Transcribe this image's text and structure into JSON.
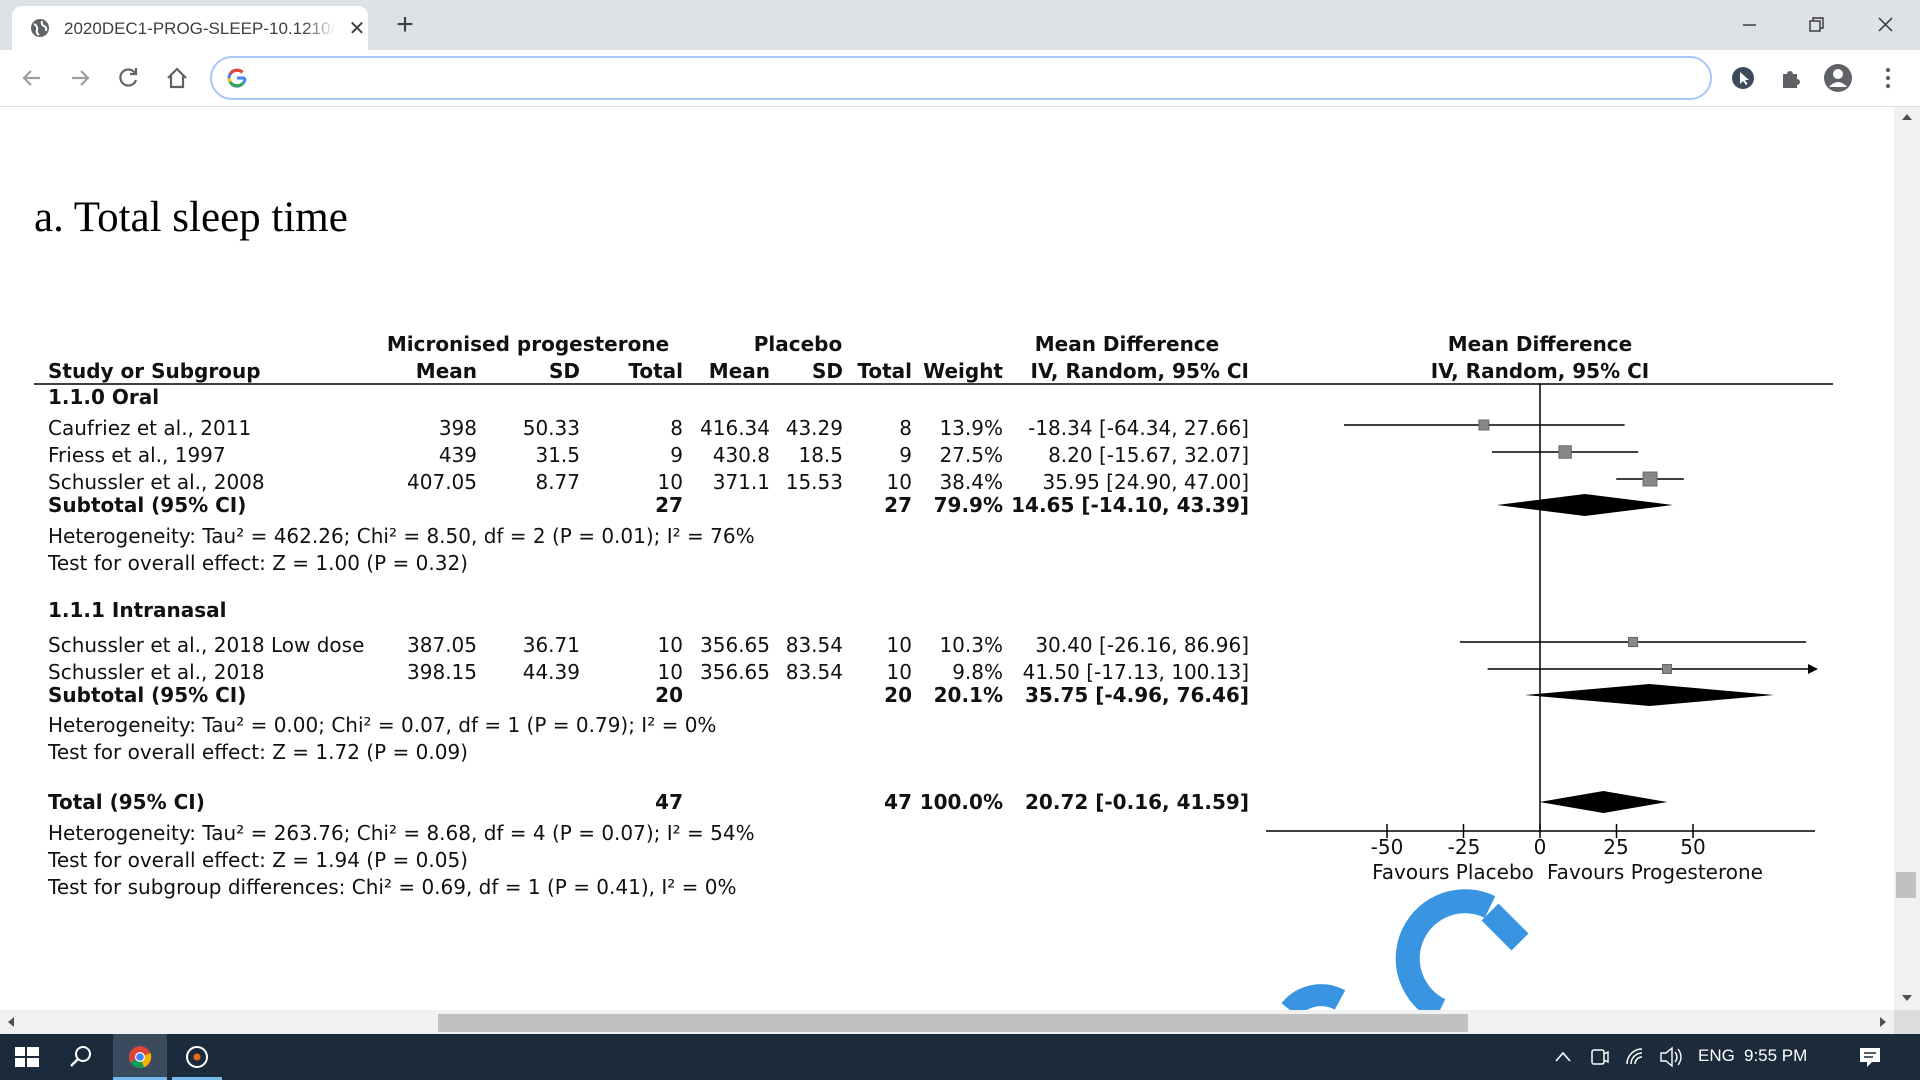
{
  "browser": {
    "tab_title": "2020DEC1-PROG-SLEEP-10.1210/",
    "new_tab": "+",
    "close_tab": "✕",
    "address_value": ""
  },
  "page": {
    "heading": "a. Total sleep time"
  },
  "forest_plot": {
    "header": {
      "group1": "Micronised progesterone",
      "group2": "Placebo",
      "md_group": "Mean Difference",
      "plot_group": "Mean Difference",
      "study": "Study or Subgroup",
      "mean1": "Mean",
      "sd1": "SD",
      "total1": "Total",
      "mean2": "Mean",
      "sd2": "SD",
      "total2": "Total",
      "weight": "Weight",
      "md_method": "IV, Random, 95% CI",
      "plot_method": "IV, Random, 95% CI"
    },
    "subgroups": [
      {
        "label": "1.1.0 Oral",
        "studies": [
          {
            "name": "Caufriez et al., 2011",
            "mean1": "398",
            "sd1": "50.33",
            "n1": "8",
            "mean2": "416.34",
            "sd2": "43.29",
            "n2": "8",
            "weight": "13.9%",
            "ci": "-18.34 [-64.34, 27.66]"
          },
          {
            "name": "Friess et al., 1997",
            "mean1": "439",
            "sd1": "31.5",
            "n1": "9",
            "mean2": "430.8",
            "sd2": "18.5",
            "n2": "9",
            "weight": "27.5%",
            "ci": "8.20 [-15.67, 32.07]"
          },
          {
            "name": "Schussler et al., 2008",
            "mean1": "407.05",
            "sd1": "8.77",
            "n1": "10",
            "mean2": "371.1",
            "sd2": "15.53",
            "n2": "10",
            "weight": "38.4%",
            "ci": "35.95 [24.90, 47.00]"
          }
        ],
        "subtotal": {
          "label": "Subtotal (95% CI)",
          "n1": "27",
          "n2": "27",
          "weight": "79.9%",
          "ci": "14.65 [-14.10, 43.39]"
        },
        "heterogeneity": "Heterogeneity: Tau² = 462.26; Chi² = 8.50, df = 2 (P = 0.01); I² = 76%",
        "overall": "Test for overall effect: Z = 1.00 (P = 0.32)"
      },
      {
        "label": "1.1.1 Intranasal",
        "studies": [
          {
            "name": "Schussler et al., 2018 Low dose",
            "mean1": "387.05",
            "sd1": "36.71",
            "n1": "10",
            "mean2": "356.65",
            "sd2": "83.54",
            "n2": "10",
            "weight": "10.3%",
            "ci": "30.40 [-26.16, 86.96]"
          },
          {
            "name": "Schussler et al., 2018",
            "mean1": "398.15",
            "sd1": "44.39",
            "n1": "10",
            "mean2": "356.65",
            "sd2": "83.54",
            "n2": "10",
            "weight": "9.8%",
            "ci": "41.50 [-17.13, 100.13]"
          }
        ],
        "subtotal": {
          "label": "Subtotal (95% CI)",
          "n1": "20",
          "n2": "20",
          "weight": "20.1%",
          "ci": "35.75 [-4.96, 76.46]"
        },
        "heterogeneity": "Heterogeneity: Tau² = 0.00; Chi² = 0.07, df = 1 (P = 0.79); I² = 0%",
        "overall": "Test for overall effect: Z = 1.72 (P = 0.09)"
      }
    ],
    "total": {
      "label": "Total (95% CI)",
      "n1": "47",
      "n2": "47",
      "weight": "100.0%",
      "ci": "20.72 [-0.16, 41.59]"
    },
    "total_heterogeneity": "Heterogeneity: Tau² = 263.76; Chi² = 8.68, df = 4 (P = 0.07); I² = 54%",
    "total_overall": "Test for overall effect: Z = 1.94 (P = 0.05)",
    "subgroup_diff": "Test for subgroup differences: Chi² = 0.69, df = 1 (P = 0.41), I² = 0%",
    "axis": {
      "ticks": [
        "-50",
        "-25",
        "0",
        "25",
        "50"
      ],
      "left_label": "Favours Placebo",
      "right_label": "Favours Progesterone"
    }
  },
  "chart_data": {
    "type": "scatter",
    "title": "Mean Difference IV, Random, 95% CI",
    "xlim": [
      -50,
      50
    ],
    "xticks": [
      -50,
      -25,
      0,
      25,
      50
    ],
    "studies": [
      {
        "name": "Caufriez et al., 2011",
        "md": -18.34,
        "lo": -64.34,
        "hi": 27.66,
        "weight": 13.9
      },
      {
        "name": "Friess et al., 1997",
        "md": 8.2,
        "lo": -15.67,
        "hi": 32.07,
        "weight": 27.5
      },
      {
        "name": "Schussler et al., 2008",
        "md": 35.95,
        "lo": 24.9,
        "hi": 47.0,
        "weight": 38.4
      },
      {
        "name": "Schussler et al., 2018 Low dose",
        "md": 30.4,
        "lo": -26.16,
        "hi": 86.96,
        "weight": 10.3
      },
      {
        "name": "Schussler et al., 2018",
        "md": 41.5,
        "lo": -17.13,
        "hi": 100.13,
        "weight": 9.8
      }
    ],
    "diamonds": [
      {
        "name": "Subtotal (95% CI)",
        "md": 14.65,
        "lo": -14.1,
        "hi": 43.39
      },
      {
        "name": "Subtotal (95% CI)",
        "md": 35.75,
        "lo": -4.96,
        "hi": 76.46
      },
      {
        "name": "Total (95% CI)",
        "md": 20.72,
        "lo": -0.16,
        "hi": 41.59
      }
    ]
  },
  "taskbar": {
    "lang": "ENG",
    "time": "9:55 PM"
  }
}
